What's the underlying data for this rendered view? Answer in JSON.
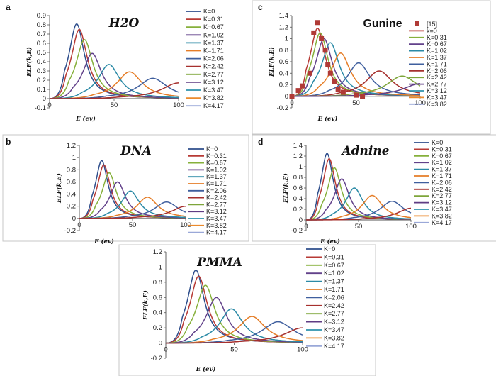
{
  "palette": [
    "#2e4e8c",
    "#b73a35",
    "#86b03b",
    "#62418a",
    "#2b8aa6",
    "#e57d27",
    "#3f5f9e",
    "#a6302e",
    "#7ea53a",
    "#5f3c84",
    "#2e93ad",
    "#eb8a2c",
    "#9aa8d8"
  ],
  "chart_data": [
    {
      "type": "line",
      "panel_label": "a",
      "title": "H2O",
      "xlabel": "E (ev)",
      "ylabel": "ELF(k,E)",
      "xlim": [
        0,
        100
      ],
      "ylim": [
        -0.1,
        0.9
      ],
      "yticks": [
        "-0.1",
        "0",
        "0.1",
        "0.2",
        "0.3",
        "0.4",
        "0.5",
        "0.6",
        "0.7",
        "0.8",
        "0.9"
      ],
      "xticks": [
        "0",
        "50",
        "100"
      ],
      "legend": [
        "K=0",
        "K=0.31",
        "K=0.67",
        "K=1.02",
        "K=1.37",
        "K=1.71",
        "K=2.06",
        "K=2.42",
        "K=2.77",
        "K=3.12",
        "K=3.47",
        "K=3.82",
        "K=4.17"
      ],
      "series": [
        {
          "name": "K=0",
          "peak_x": 21,
          "peak_y": 0.81
        },
        {
          "name": "K=0.31",
          "peak_x": 23,
          "peak_y": 0.75
        },
        {
          "name": "K=0.67",
          "peak_x": 27,
          "peak_y": 0.64
        },
        {
          "name": "K=1.02",
          "peak_x": 33,
          "peak_y": 0.49
        },
        {
          "name": "K=1.37",
          "peak_x": 46,
          "peak_y": 0.37
        },
        {
          "name": "K=1.71",
          "peak_x": 62,
          "peak_y": 0.29
        },
        {
          "name": "K=2.06",
          "peak_x": 80,
          "peak_y": 0.22
        },
        {
          "name": "K=2.42",
          "peak_x": 100,
          "peak_y": 0.17
        }
      ]
    },
    {
      "type": "line",
      "panel_label": "c",
      "title": "Gunine",
      "xlabel": "E (ev)",
      "ylabel": "ELF(k,E)",
      "xlim": [
        0,
        100
      ],
      "ylim": [
        -0.2,
        1.4
      ],
      "yticks": [
        "-0.2",
        "0",
        "0.2",
        "0.4",
        "0.6",
        "0.8",
        "1",
        "1.2",
        "1.4"
      ],
      "xticks": [
        "0",
        "50",
        "100"
      ],
      "legend": [
        "[15]",
        "k=0",
        "K=0.31",
        "K=0.67",
        "K=1.02",
        "K=1.37",
        "K=1.71",
        "K=2.06",
        "K=2.42",
        "K=2.77",
        "K=3.12",
        "K=3.47",
        "K=3.82"
      ],
      "series": [
        {
          "name": "k=0",
          "peak_x": 20,
          "peak_y": 1.18
        },
        {
          "name": "K=0.31",
          "peak_x": 22,
          "peak_y": 1.1
        },
        {
          "name": "K=0.67",
          "peak_x": 25,
          "peak_y": 1.0
        },
        {
          "name": "K=1.02",
          "peak_x": 30,
          "peak_y": 0.93
        },
        {
          "name": "K=1.37",
          "peak_x": 38,
          "peak_y": 0.75
        },
        {
          "name": "K=1.71",
          "peak_x": 52,
          "peak_y": 0.58
        },
        {
          "name": "K=2.06",
          "peak_x": 68,
          "peak_y": 0.44
        },
        {
          "name": "K=2.42",
          "peak_x": 86,
          "peak_y": 0.35
        },
        {
          "name": "K=2.77",
          "peak_x": 100,
          "peak_y": 0.22
        }
      ],
      "reference_points": {
        "name": "[15]",
        "x": [
          0,
          5,
          8,
          14,
          17,
          20,
          23,
          26,
          28,
          30,
          33,
          36,
          40,
          50,
          55
        ],
        "y": [
          0.0,
          0.1,
          0.18,
          0.4,
          1.1,
          1.28,
          1.0,
          0.8,
          0.55,
          0.4,
          0.25,
          0.12,
          0.07,
          0.02,
          0.0
        ]
      }
    },
    {
      "type": "line",
      "panel_label": "b",
      "title": "DNA",
      "xlabel": "E (ev)",
      "ylabel": "ELF(k,E)",
      "xlim": [
        0,
        100
      ],
      "ylim": [
        -0.2,
        1.2
      ],
      "yticks": [
        "-0.2",
        "0",
        "0.2",
        "0.4",
        "0.6",
        "0.8",
        "1",
        "1.2"
      ],
      "xticks": [
        "0",
        "50",
        "100"
      ],
      "legend": [
        "K=0",
        "K=0.31",
        "K=0.67",
        "K=1.02",
        "K=1.37",
        "K=1.71",
        "K=2.06",
        "K=2.42",
        "K=2.77",
        "K=3.12",
        "K=3.47",
        "K=3.82",
        "K=4.17"
      ],
      "series": [
        {
          "name": "K=0",
          "peak_x": 21,
          "peak_y": 0.95
        },
        {
          "name": "K=0.31",
          "peak_x": 23,
          "peak_y": 0.88
        },
        {
          "name": "K=0.67",
          "peak_x": 28,
          "peak_y": 0.75
        },
        {
          "name": "K=1.02",
          "peak_x": 36,
          "peak_y": 0.6
        },
        {
          "name": "K=1.37",
          "peak_x": 48,
          "peak_y": 0.45
        },
        {
          "name": "K=1.71",
          "peak_x": 64,
          "peak_y": 0.35
        },
        {
          "name": "K=2.06",
          "peak_x": 82,
          "peak_y": 0.27
        },
        {
          "name": "K=2.42",
          "peak_x": 100,
          "peak_y": 0.2
        }
      ]
    },
    {
      "type": "line",
      "panel_label": "d",
      "title": "Adnine",
      "xlabel": "E (ev)",
      "ylabel": "ELF(k,E)",
      "xlim": [
        0,
        100
      ],
      "ylim": [
        -0.2,
        1.4
      ],
      "yticks": [
        "-0.2",
        "0",
        "0.2",
        "0.4",
        "0.6",
        "0.8",
        "1",
        "1.2",
        "1.4"
      ],
      "xticks": [
        "0",
        "50",
        "100"
      ],
      "legend": [
        "K=0",
        "K=0.31",
        "K=0.67",
        "K=1.02",
        "K=1.37",
        "K=1.71",
        "K=2.06",
        "K=2.42",
        "K=2.77",
        "K=3.12",
        "K=3.47",
        "K=3.82",
        "K=4.17"
      ],
      "series": [
        {
          "name": "K=0",
          "peak_x": 20,
          "peak_y": 1.25
        },
        {
          "name": "K=0.31",
          "peak_x": 22,
          "peak_y": 1.15
        },
        {
          "name": "K=0.67",
          "peak_x": 27,
          "peak_y": 0.98
        },
        {
          "name": "K=1.02",
          "peak_x": 34,
          "peak_y": 0.77
        },
        {
          "name": "K=1.37",
          "peak_x": 46,
          "peak_y": 0.6
        },
        {
          "name": "K=1.71",
          "peak_x": 63,
          "peak_y": 0.46
        },
        {
          "name": "K=2.06",
          "peak_x": 82,
          "peak_y": 0.35
        },
        {
          "name": "K=2.42",
          "peak_x": 100,
          "peak_y": 0.22
        }
      ]
    },
    {
      "type": "line",
      "panel_label": "",
      "title": "PMMA",
      "xlabel": "E (ev)",
      "ylabel": "ELF(k,E)",
      "xlim": [
        0,
        100
      ],
      "ylim": [
        -0.2,
        1.2
      ],
      "yticks": [
        "-0.2",
        "0",
        "0.2",
        "0.4",
        "0.6",
        "0.8",
        "1",
        "1.2"
      ],
      "xticks": [
        "0",
        "50",
        "100"
      ],
      "legend": [
        "K=0",
        "K=0.31",
        "K=0.67",
        "K=1.02",
        "K=1.37",
        "K=1.71",
        "K=2.06",
        "K=2.42",
        "K=2.77",
        "K=3.12",
        "K=3.47",
        "K=3.82",
        "K=4.17"
      ],
      "series": [
        {
          "name": "K=0",
          "peak_x": 22,
          "peak_y": 0.96
        },
        {
          "name": "K=0.31",
          "peak_x": 24,
          "peak_y": 0.88
        },
        {
          "name": "K=0.67",
          "peak_x": 29,
          "peak_y": 0.76
        },
        {
          "name": "K=1.02",
          "peak_x": 37,
          "peak_y": 0.6
        },
        {
          "name": "K=1.37",
          "peak_x": 48,
          "peak_y": 0.45
        },
        {
          "name": "K=1.71",
          "peak_x": 63,
          "peak_y": 0.35
        },
        {
          "name": "K=2.06",
          "peak_x": 82,
          "peak_y": 0.28
        },
        {
          "name": "K=2.42",
          "peak_x": 100,
          "peak_y": 0.2
        }
      ]
    }
  ]
}
